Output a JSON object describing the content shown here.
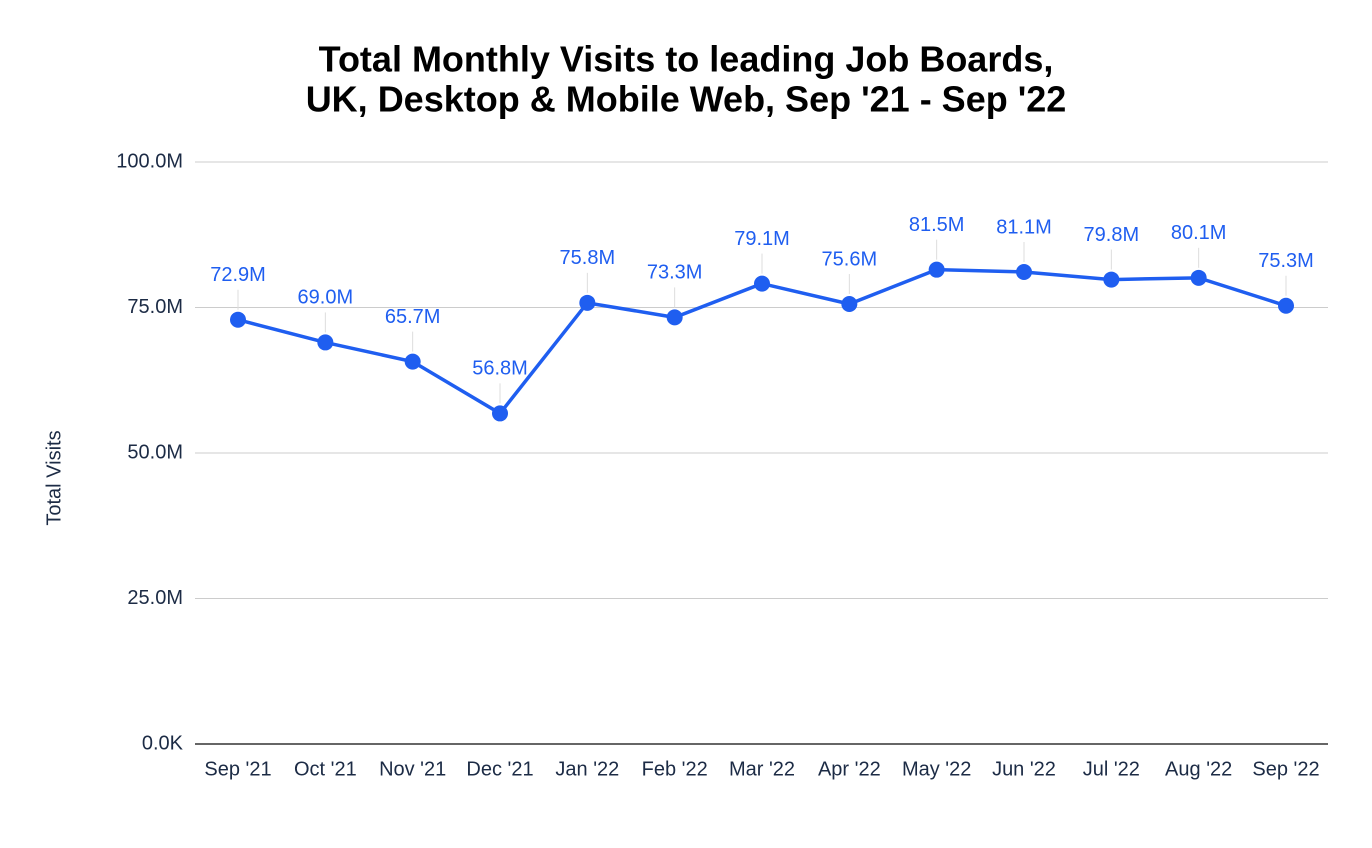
{
  "chart_data": {
    "type": "line",
    "title": [
      "Total Monthly Visits to leading Job Boards,",
      "UK, Desktop & Mobile Web, Sep '21 - Sep '22"
    ],
    "y_label": "Total Visits",
    "categories": [
      "Sep '21",
      "Oct '21",
      "Nov '21",
      "Dec '21",
      "Jan '22",
      "Feb '22",
      "Mar '22",
      "Apr '22",
      "May '22",
      "Jun '22",
      "Jul '22",
      "Aug '22",
      "Sep '22"
    ],
    "series": [
      {
        "name": "Total Visits",
        "color": "#1f5ef0",
        "values": [
          72900000,
          69000000,
          65700000,
          56800000,
          75800000,
          73300000,
          79100000,
          75600000,
          81500000,
          81100000,
          79800000,
          80100000,
          75300000
        ],
        "value_labels": [
          "72.9M",
          "69.0M",
          "65.7M",
          "56.8M",
          "75.8M",
          "73.3M",
          "79.1M",
          "75.6M",
          "81.5M",
          "81.1M",
          "79.8M",
          "80.1M",
          "75.3M"
        ]
      }
    ],
    "ylim": [
      0,
      100000000
    ],
    "yticks": [
      {
        "value": 0,
        "label": "0.0K"
      },
      {
        "value": 25000000,
        "label": "25.0M"
      },
      {
        "value": 50000000,
        "label": "50.0M"
      },
      {
        "value": 75000000,
        "label": "75.0M"
      },
      {
        "value": 100000000,
        "label": "100.0M"
      }
    ],
    "grid": true
  }
}
